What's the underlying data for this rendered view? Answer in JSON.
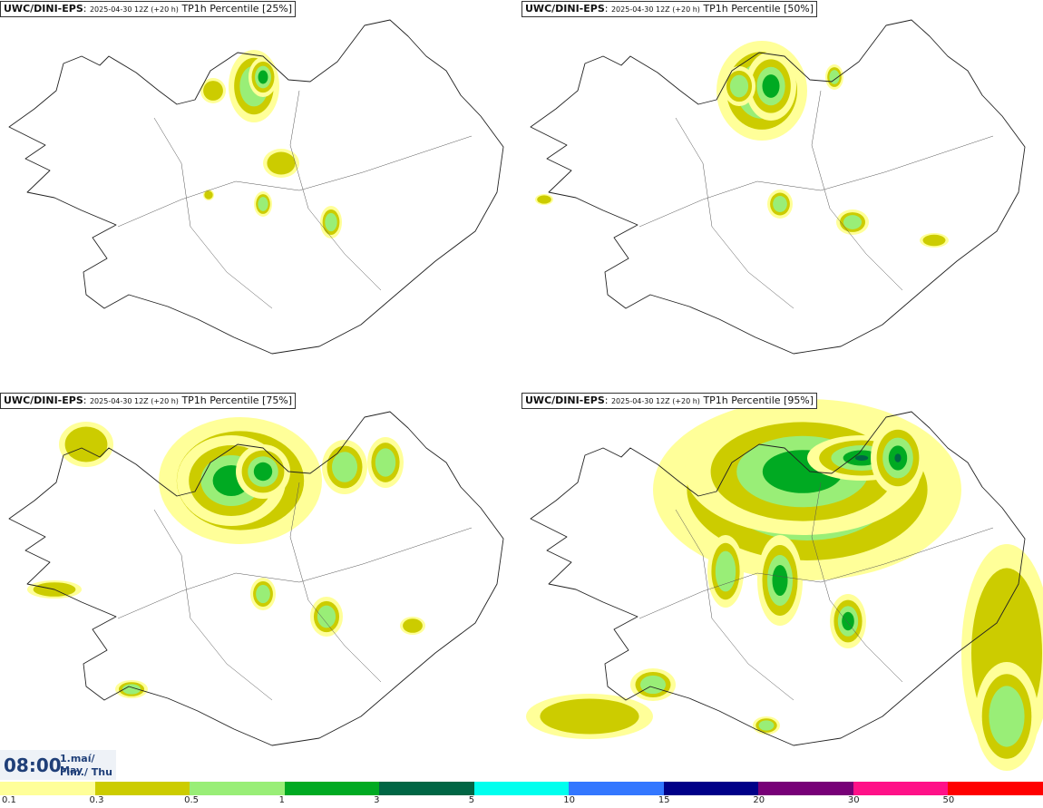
{
  "panels": [
    {
      "model": "UWC/DINI-EPS",
      "run": "2025-04-30 12Z (+20 h)",
      "field": "TP1h Percentile [25%]",
      "intensity": 1
    },
    {
      "model": "UWC/DINI-EPS",
      "run": "2025-04-30 12Z (+20 h)",
      "field": "TP1h Percentile [50%]",
      "intensity": 2
    },
    {
      "model": "UWC/DINI-EPS",
      "run": "2025-04-30 12Z (+20 h)",
      "field": "TP1h Percentile [75%]",
      "intensity": 3
    },
    {
      "model": "UWC/DINI-EPS",
      "run": "2025-04-30 12Z (+20 h)",
      "field": "TP1h Percentile [95%]",
      "intensity": 4
    }
  ],
  "time": {
    "hour": "08:00",
    "date_line1": "1.maí/ May",
    "date_line2": "Fim./ Thu"
  },
  "colorbar": {
    "colors": [
      "#ffff99",
      "#cccc00",
      "#99ee77",
      "#00aa22",
      "#006644",
      "#00ffee",
      "#3377ff",
      "#000088",
      "#770077",
      "#ff1188",
      "#ff0000"
    ],
    "labels": [
      "0.1",
      "0.3",
      "0.5",
      "1",
      "3",
      "5",
      "10",
      "15",
      "20",
      "30",
      "50"
    ]
  }
}
